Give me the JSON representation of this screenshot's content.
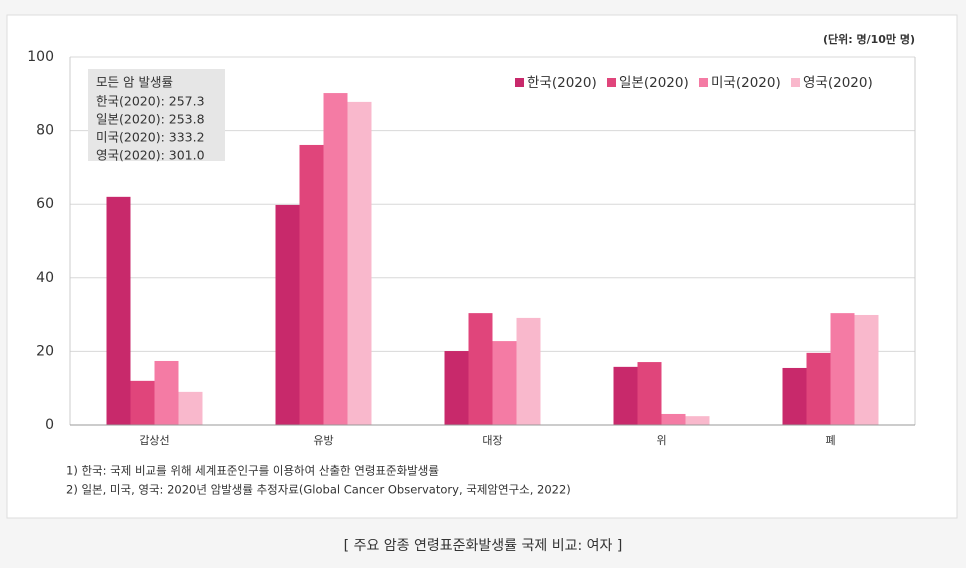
{
  "chart_data": {
    "type": "bar",
    "unit_note": "(단위: 명/10만 명)",
    "categories": [
      "갑상선",
      "유방",
      "대장",
      "위",
      "폐"
    ],
    "series": [
      {
        "name": "한국(2020)",
        "color": "#c8296b",
        "values": [
          62.0,
          59.8,
          20.1,
          15.8,
          15.5
        ]
      },
      {
        "name": "일본(2020)",
        "color": "#e0457b",
        "values": [
          12.0,
          76.1,
          30.4,
          17.1,
          19.6
        ]
      },
      {
        "name": "미국(2020)",
        "color": "#f47ba4",
        "values": [
          17.4,
          90.2,
          22.8,
          3.0,
          30.4
        ]
      },
      {
        "name": "영국(2020)",
        "color": "#f9b8cc",
        "values": [
          9.0,
          87.8,
          29.1,
          2.4,
          29.9
        ]
      }
    ],
    "ylim": [
      0,
      100
    ],
    "yticks": [
      0,
      20,
      40,
      60,
      80,
      100
    ],
    "grid": true,
    "inset": {
      "title": "모든 암 발생률",
      "lines": [
        "한국(2020): 257.3",
        "일본(2020): 253.8",
        "미국(2020): 333.2",
        "영국(2020): 301.0"
      ]
    },
    "notes": [
      "1) 한국: 국제 비교를 위해 세계표준인구를 이용하여 산출한 연령표준화발생률",
      "2) 일본, 미국, 영국:  2020년 암발생률 추정자료(Global Cancer Observatory, 국제암연구소, 2022)"
    ]
  },
  "caption": "[ 주요 암종 연령표준화발생률 국제 비교: 여자 ]"
}
